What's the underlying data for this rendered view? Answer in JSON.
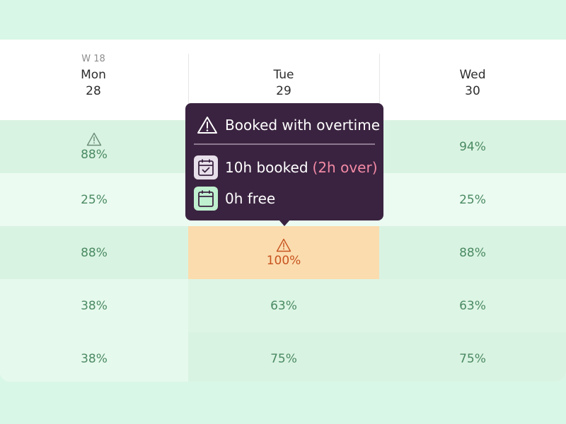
{
  "week_label": "W 18",
  "days": [
    {
      "name": "Mon",
      "date": "28"
    },
    {
      "name": "Tue",
      "date": "29"
    },
    {
      "name": "Wed",
      "date": "30"
    }
  ],
  "rows": [
    [
      {
        "value": "88%",
        "warning": true,
        "bg": "#d9f3e2"
      },
      {
        "value": "",
        "warning": false,
        "bg": "#d9f3e2"
      },
      {
        "value": "94%",
        "warning": false,
        "bg": "#d9f3e2"
      }
    ],
    [
      {
        "value": "25%",
        "warning": false,
        "bg": "#ebfbf1"
      },
      {
        "value": "",
        "warning": false,
        "bg": "#ebfbf1"
      },
      {
        "value": "25%",
        "warning": false,
        "bg": "#ebfbf1"
      }
    ],
    [
      {
        "value": "88%",
        "warning": false,
        "bg": "#d9f3e2"
      },
      {
        "value": "100%",
        "warning": true,
        "bg": "#fbdcae",
        "over": true
      },
      {
        "value": "88%",
        "warning": false,
        "bg": "#d9f3e2"
      }
    ],
    [
      {
        "value": "38%",
        "warning": false,
        "bg": "#e6f9ed"
      },
      {
        "value": "63%",
        "warning": false,
        "bg": "#ddf5e5"
      },
      {
        "value": "63%",
        "warning": false,
        "bg": "#ddf5e5"
      }
    ],
    [
      {
        "value": "38%",
        "warning": false,
        "bg": "#e6f9ed"
      },
      {
        "value": "75%",
        "warning": false,
        "bg": "#d9f3e2"
      },
      {
        "value": "75%",
        "warning": false,
        "bg": "#d9f3e2"
      }
    ]
  ],
  "tooltip": {
    "title": "Booked with overtime",
    "booked_text": "10h booked",
    "overtime_text": "(2h over)",
    "free_text": "0h free",
    "icons": {
      "title": "warning-icon",
      "booked": "calendar-check-icon",
      "free": "calendar-icon"
    }
  },
  "colors": {
    "page_bg": "#d9f7e6",
    "normal_text": "#4a8a62",
    "over_bg": "#fbdcae",
    "over_text": "#c7531f",
    "tooltip_bg": "#3a2340",
    "overtime_text": "#f28aa5"
  }
}
